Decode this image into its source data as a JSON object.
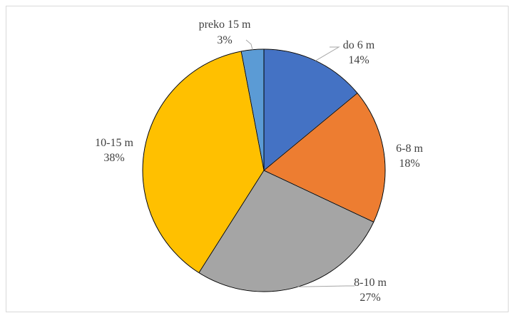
{
  "chart_data": {
    "type": "pie",
    "title": "",
    "slices": [
      {
        "label": "do 6 m",
        "percent_label": "14%",
        "value": 14,
        "color": "#4472c4"
      },
      {
        "label": "6-8 m",
        "percent_label": "18%",
        "value": 18,
        "color": "#ed7d31"
      },
      {
        "label": "8-10 m",
        "percent_label": "27%",
        "value": 27,
        "color": "#a5a5a5"
      },
      {
        "label": "10-15 m",
        "percent_label": "38%",
        "value": 38,
        "color": "#ffc000"
      },
      {
        "label": "preko 15 m",
        "percent_label": "3%",
        "value": 3,
        "color": "#5b9bd5"
      }
    ],
    "legend": "none",
    "start_angle": "12 o'clock",
    "direction": "clockwise"
  }
}
